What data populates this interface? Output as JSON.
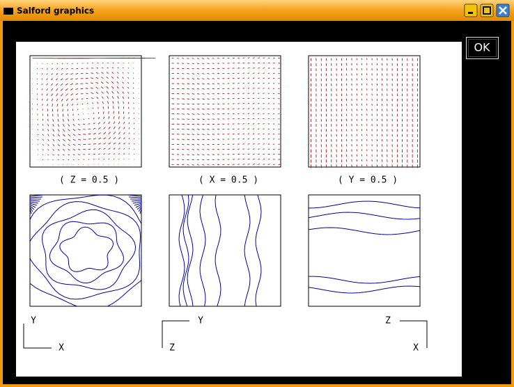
{
  "window": {
    "title": "Salford graphics",
    "ok_button": "OK"
  },
  "plots": [
    {
      "label": "( Z = 0.5 )"
    },
    {
      "label": "( X = 0.5 )"
    },
    {
      "label": "( Y = 0.5 )"
    }
  ],
  "axes": [
    {
      "top": "Y",
      "bottom": "X"
    },
    {
      "top": "Y",
      "bottom": "Z"
    },
    {
      "top": "Z",
      "bottom": "X"
    }
  ]
}
